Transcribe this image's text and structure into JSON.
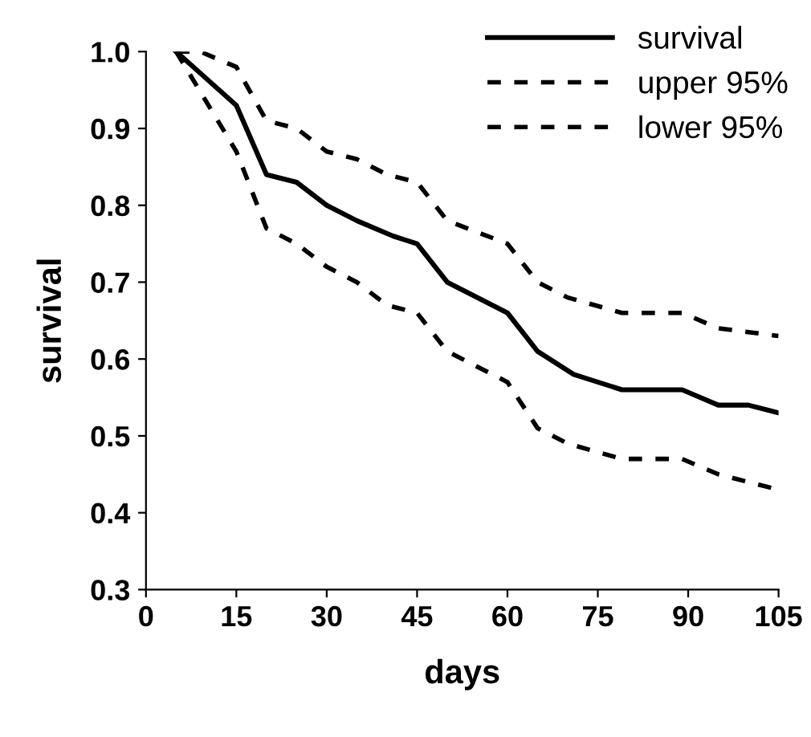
{
  "chart_data": {
    "type": "line",
    "xlabel": "days",
    "ylabel": "survival",
    "xlim": [
      0,
      105
    ],
    "xticks": [
      0,
      15,
      30,
      45,
      60,
      75,
      90,
      105
    ],
    "ylim": [
      0.3,
      1.0
    ],
    "yticks": [
      0.3,
      0.4,
      0.5,
      0.6,
      0.7,
      0.8,
      0.9,
      {
        "value": 1.0,
        "label": "1.0"
      }
    ],
    "grid": false,
    "legend": "top right",
    "marker": "none",
    "series": [
      {
        "name": "survival",
        "color": "#000000",
        "line_style": "solid",
        "x": [
          5,
          15,
          20,
          25,
          30,
          35,
          41,
          45,
          50,
          60,
          65,
          71,
          79,
          89,
          95,
          100,
          105
        ],
        "values": [
          1.0,
          0.93,
          0.84,
          0.83,
          0.8,
          0.78,
          0.76,
          0.75,
          0.7,
          0.66,
          0.61,
          0.58,
          0.56,
          0.56,
          0.54,
          0.54,
          0.53
        ]
      },
      {
        "name": "upper 95%",
        "color": "#000000",
        "line_style": "dashed",
        "x": [
          5,
          9,
          15,
          20,
          25,
          30,
          35,
          40,
          45,
          50,
          60,
          65,
          70,
          79,
          89,
          95,
          105
        ],
        "values": [
          1.0,
          1.0,
          0.98,
          0.91,
          0.9,
          0.87,
          0.86,
          0.84,
          0.83,
          0.78,
          0.75,
          0.7,
          0.68,
          0.66,
          0.66,
          0.64,
          0.63
        ]
      },
      {
        "name": "lower 95%",
        "color": "#000000",
        "line_style": "dashed",
        "x": [
          5,
          15,
          20,
          25,
          30,
          35,
          40,
          45,
          50,
          60,
          65,
          70,
          79,
          89,
          95,
          105
        ],
        "values": [
          1.0,
          0.87,
          0.77,
          0.75,
          0.72,
          0.7,
          0.67,
          0.66,
          0.61,
          0.57,
          0.51,
          0.49,
          0.47,
          0.47,
          0.45,
          0.43
        ]
      }
    ]
  }
}
